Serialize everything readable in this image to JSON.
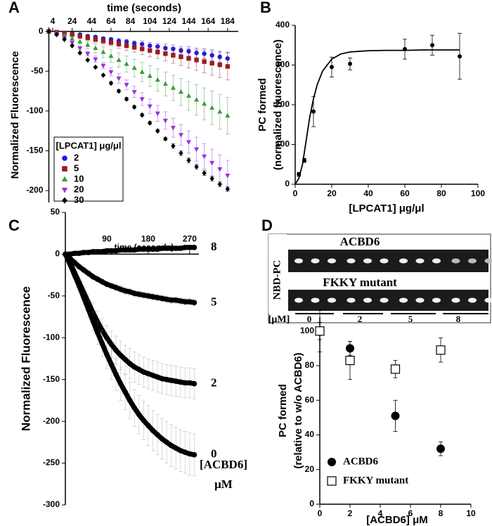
{
  "chart_data": [
    {
      "type": "line",
      "panel": "A",
      "xlabel": "time (seconds)",
      "ylabel": "Normalized Fluorescence",
      "legend_title": "[LPCAT1] μg/μl",
      "x": [
        0,
        8,
        16,
        24,
        32,
        40,
        48,
        56,
        64,
        72,
        80,
        88,
        96,
        104,
        112,
        120,
        128,
        136,
        144,
        152,
        160,
        168,
        176,
        184
      ],
      "xlim": [
        0,
        195
      ],
      "xticks": [
        4,
        24,
        44,
        64,
        84,
        104,
        124,
        144,
        164,
        184
      ],
      "ylim": [
        -215,
        5
      ],
      "yticks": [
        0,
        -50,
        -100,
        -150,
        -200
      ],
      "series": [
        {
          "name": "2",
          "color": "#1a1ae6",
          "marker": "circle",
          "values": [
            0,
            -1,
            -2,
            -3,
            -4,
            -6,
            -7,
            -9,
            -10,
            -12,
            -13,
            -15,
            -16,
            -18,
            -19,
            -21,
            -22,
            -24,
            -25,
            -27,
            -28,
            -30,
            -32,
            -34
          ],
          "errors": [
            0,
            1,
            1,
            1,
            1,
            2,
            2,
            2,
            2,
            3,
            3,
            3,
            4,
            4,
            4,
            5,
            5,
            5,
            6,
            6,
            6,
            7,
            7,
            8
          ]
        },
        {
          "name": "5",
          "color": "#9b1c1c",
          "marker": "square",
          "values": [
            0,
            -1,
            -2,
            -4,
            -6,
            -8,
            -10,
            -12,
            -14,
            -16,
            -18,
            -20,
            -22,
            -24,
            -26,
            -28,
            -30,
            -32,
            -34,
            -36,
            -38,
            -40,
            -42,
            -44
          ],
          "errors": [
            0,
            1,
            1,
            2,
            2,
            3,
            3,
            4,
            4,
            5,
            6,
            6,
            7,
            8,
            8,
            9,
            10,
            11,
            12,
            13,
            14,
            15,
            16,
            17
          ]
        },
        {
          "name": "10",
          "color": "#3c9a3c",
          "marker": "triangle",
          "values": [
            0,
            -2,
            -5,
            -9,
            -13,
            -17,
            -21,
            -26,
            -31,
            -36,
            -41,
            -46,
            -51,
            -56,
            -61,
            -66,
            -71,
            -76,
            -81,
            -86,
            -91,
            -96,
            -101,
            -106
          ],
          "errors": [
            0,
            1,
            2,
            3,
            4,
            5,
            6,
            7,
            8,
            9,
            10,
            11,
            12,
            13,
            14,
            15,
            16,
            17,
            18,
            19,
            20,
            21,
            22,
            23
          ]
        },
        {
          "name": "20",
          "color": "#9a30d8",
          "marker": "triangle-down",
          "values": [
            0,
            -3,
            -8,
            -14,
            -21,
            -28,
            -35,
            -43,
            -51,
            -59,
            -67,
            -76,
            -85,
            -94,
            -103,
            -112,
            -121,
            -130,
            -139,
            -148,
            -157,
            -165,
            -173,
            -181
          ],
          "errors": [
            0,
            1,
            1,
            2,
            2,
            3,
            4,
            4,
            5,
            6,
            6,
            7,
            8,
            9,
            10,
            11,
            12,
            13,
            14,
            15,
            16,
            17,
            18,
            19
          ]
        },
        {
          "name": "30",
          "color": "#000000",
          "marker": "diamond",
          "values": [
            0,
            -4,
            -10,
            -18,
            -27,
            -36,
            -45,
            -55,
            -65,
            -75,
            -85,
            -95,
            -105,
            -115,
            -125,
            -135,
            -144,
            -153,
            -162,
            -170,
            -178,
            -185,
            -192,
            -198
          ],
          "errors": [
            0,
            1,
            1,
            1,
            1,
            1,
            1,
            1,
            2,
            2,
            2,
            2,
            2,
            2,
            2,
            2,
            3,
            3,
            3,
            3,
            3,
            3,
            3,
            3
          ]
        }
      ]
    },
    {
      "type": "scatter",
      "panel": "B",
      "xlabel": "[LPCAT1] μg/μl",
      "ylabel": [
        "PC formed",
        "(normalized fluorescence)"
      ],
      "xlim": [
        0,
        100
      ],
      "xticks": [
        0,
        20,
        40,
        60,
        80,
        100
      ],
      "ylim": [
        0,
        400
      ],
      "yticks": [
        0,
        100,
        200,
        300,
        400
      ],
      "series": [
        {
          "color": "#000000",
          "marker": "circle",
          "x": [
            2,
            5,
            10,
            20,
            30,
            60,
            75,
            90
          ],
          "values": [
            25,
            60,
            183,
            295,
            303,
            340,
            350,
            322
          ],
          "errors": [
            5,
            5,
            38,
            25,
            15,
            25,
            25,
            58
          ]
        }
      ],
      "fit": {
        "color": "#000000",
        "x": [
          0,
          2,
          4,
          6,
          8,
          10,
          12,
          15,
          20,
          25,
          30,
          40,
          50,
          60,
          70,
          80,
          90
        ],
        "values": [
          0,
          15,
          50,
          110,
          170,
          215,
          250,
          285,
          315,
          328,
          333,
          336,
          337,
          337,
          338,
          338,
          338
        ]
      }
    },
    {
      "type": "line",
      "panel": "C",
      "xlabel": "time (seconds)",
      "ylabel": "Normalized Fluorescence",
      "legend_title": [
        "[ACBD6]",
        "μM"
      ],
      "x": [
        0,
        10,
        20,
        30,
        40,
        50,
        60,
        70,
        80,
        90,
        100,
        110,
        120,
        130,
        140,
        150,
        160,
        170,
        180,
        190,
        200,
        210,
        220,
        230,
        240,
        250,
        260,
        270,
        280
      ],
      "xlim": [
        0,
        290
      ],
      "xticks": [
        90,
        180,
        270
      ],
      "ylim": [
        -300,
        50
      ],
      "yticks": [
        50,
        0,
        -50,
        -100,
        -150,
        -200,
        -250,
        -300
      ],
      "series": [
        {
          "name": "8",
          "color": "#000000",
          "marker": "circle",
          "values": [
            0,
            0,
            1,
            1,
            2,
            2,
            3,
            3,
            3,
            4,
            4,
            4,
            5,
            5,
            5,
            5,
            6,
            6,
            6,
            6,
            6,
            7,
            7,
            7,
            7,
            7,
            8,
            8,
            8
          ],
          "errors": [
            2,
            2,
            2,
            2,
            2,
            2,
            2,
            2,
            2,
            2,
            2,
            2,
            2,
            2,
            2,
            2,
            2,
            2,
            2,
            2,
            2,
            2,
            2,
            2,
            2,
            2,
            2,
            2,
            2
          ]
        },
        {
          "name": "5",
          "color": "#000000",
          "marker": "circle",
          "values": [
            0,
            -5,
            -10,
            -15,
            -19,
            -23,
            -27,
            -30,
            -33,
            -36,
            -38,
            -40,
            -42,
            -44,
            -45,
            -47,
            -48,
            -49,
            -50,
            -51,
            -52,
            -53,
            -54,
            -55,
            -55,
            -56,
            -57,
            -57,
            -58
          ],
          "errors": [
            0,
            1,
            1,
            2,
            2,
            2,
            3,
            3,
            3,
            3,
            3,
            4,
            4,
            4,
            4,
            4,
            4,
            4,
            4,
            4,
            4,
            4,
            4,
            4,
            4,
            4,
            4,
            4,
            4
          ]
        },
        {
          "name": "2",
          "color": "#000000",
          "marker": "circle",
          "values": [
            0,
            -10,
            -22,
            -34,
            -46,
            -58,
            -70,
            -81,
            -91,
            -100,
            -108,
            -115,
            -121,
            -126,
            -131,
            -135,
            -138,
            -141,
            -143,
            -145,
            -147,
            -149,
            -150,
            -151,
            -152,
            -153,
            -154,
            -154,
            -155
          ],
          "errors": [
            0,
            2,
            4,
            6,
            8,
            10,
            12,
            13,
            14,
            15,
            16,
            17,
            17,
            17,
            18,
            18,
            18,
            18,
            18,
            18,
            18,
            18,
            18,
            18,
            18,
            18,
            18,
            18,
            18
          ]
        },
        {
          "name": "0",
          "color": "#000000",
          "marker": "circle",
          "values": [
            0,
            -12,
            -25,
            -38,
            -52,
            -66,
            -80,
            -94,
            -107,
            -120,
            -132,
            -144,
            -155,
            -165,
            -175,
            -184,
            -192,
            -199,
            -205,
            -211,
            -216,
            -221,
            -225,
            -229,
            -232,
            -235,
            -237,
            -239,
            -240
          ],
          "errors": [
            0,
            2,
            4,
            6,
            8,
            10,
            12,
            14,
            16,
            17,
            18,
            19,
            20,
            21,
            22,
            22,
            23,
            23,
            24,
            24,
            24,
            24,
            25,
            25,
            25,
            25,
            25,
            25,
            25
          ]
        }
      ]
    },
    {
      "type": "scatter",
      "panel": "D",
      "xlabel": "[ACBD6] μM",
      "ylabel": [
        "PC formed",
        "(relative to w/o ACBD6)"
      ],
      "xlim": [
        0,
        10
      ],
      "xticks": [
        0,
        2,
        4,
        6,
        8,
        10
      ],
      "ylim": [
        0,
        108
      ],
      "yticks": [
        0,
        20,
        40,
        60,
        80,
        100
      ],
      "series": [
        {
          "name": "ACBD6",
          "color": "#000000",
          "marker": "circle",
          "x": [
            0,
            2,
            5,
            8
          ],
          "values": [
            100,
            90,
            51,
            32
          ],
          "errors": [
            5,
            4,
            9,
            4
          ]
        },
        {
          "name": "FKKY mutant",
          "color": "#000000",
          "marker": "open-square",
          "x": [
            0,
            2,
            5,
            8
          ],
          "values": [
            100,
            83,
            78,
            89
          ],
          "errors": [
            12,
            11,
            5,
            7
          ]
        }
      ],
      "gel": {
        "rows": [
          "ACBD6",
          "FKKY mutant"
        ],
        "side_label": "NBD-PC",
        "unit_label": "[μM]",
        "lanes": [
          0,
          2,
          5,
          8
        ]
      }
    }
  ]
}
